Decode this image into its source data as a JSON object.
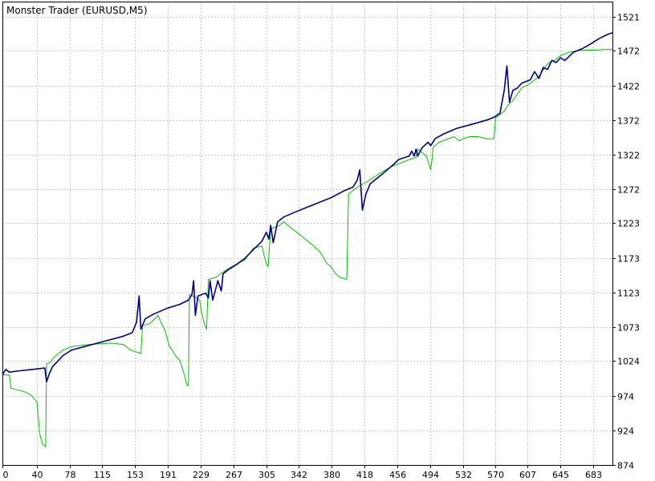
{
  "chart_data": {
    "type": "line",
    "title": "Monster Trader (EURUSD,M5)",
    "xlabel": "",
    "ylabel": "",
    "xlim": [
      0,
      705
    ],
    "ylim": [
      874,
      1543
    ],
    "x_ticks": [
      0,
      40,
      78,
      115,
      153,
      191,
      229,
      267,
      305,
      342,
      380,
      418,
      456,
      494,
      532,
      570,
      607,
      645,
      683
    ],
    "y_ticks": [
      874,
      924,
      974,
      1024,
      1073,
      1123,
      1173,
      1223,
      1272,
      1322,
      1372,
      1422,
      1472,
      1521
    ],
    "grid": true,
    "legend": "none",
    "series": [
      {
        "color": "#000080",
        "points": [
          [
            0,
            1004
          ],
          [
            4,
            1012
          ],
          [
            8,
            1008
          ],
          [
            20,
            1010
          ],
          [
            35,
            1012
          ],
          [
            49,
            1014
          ],
          [
            51,
            994
          ],
          [
            54,
            1005
          ],
          [
            58,
            1016
          ],
          [
            64,
            1024
          ],
          [
            70,
            1032
          ],
          [
            80,
            1040
          ],
          [
            95,
            1045
          ],
          [
            110,
            1050
          ],
          [
            125,
            1055
          ],
          [
            140,
            1060
          ],
          [
            150,
            1065
          ],
          [
            155,
            1080
          ],
          [
            158,
            1118
          ],
          [
            160,
            1070
          ],
          [
            165,
            1085
          ],
          [
            175,
            1092
          ],
          [
            190,
            1100
          ],
          [
            205,
            1106
          ],
          [
            215,
            1112
          ],
          [
            219,
            1120
          ],
          [
            221,
            1140
          ],
          [
            223,
            1090
          ],
          [
            226,
            1118
          ],
          [
            235,
            1122
          ],
          [
            238,
            1115
          ],
          [
            240,
            1140
          ],
          [
            243,
            1112
          ],
          [
            249,
            1140
          ],
          [
            253,
            1125
          ],
          [
            255,
            1150
          ],
          [
            260,
            1155
          ],
          [
            270,
            1163
          ],
          [
            280,
            1172
          ],
          [
            290,
            1185
          ],
          [
            300,
            1197
          ],
          [
            303,
            1205
          ],
          [
            305,
            1210
          ],
          [
            308,
            1200
          ],
          [
            310,
            1220
          ],
          [
            313,
            1195
          ],
          [
            318,
            1225
          ],
          [
            325,
            1232
          ],
          [
            340,
            1240
          ],
          [
            360,
            1250
          ],
          [
            380,
            1260
          ],
          [
            395,
            1270
          ],
          [
            405,
            1275
          ],
          [
            410,
            1285
          ],
          [
            413,
            1300
          ],
          [
            416,
            1242
          ],
          [
            420,
            1265
          ],
          [
            425,
            1280
          ],
          [
            440,
            1295
          ],
          [
            452,
            1308
          ],
          [
            458,
            1315
          ],
          [
            470,
            1320
          ],
          [
            473,
            1327
          ],
          [
            476,
            1320
          ],
          [
            478,
            1330
          ],
          [
            480,
            1320
          ],
          [
            485,
            1332
          ],
          [
            492,
            1340
          ],
          [
            495,
            1335
          ],
          [
            500,
            1345
          ],
          [
            510,
            1352
          ],
          [
            525,
            1360
          ],
          [
            540,
            1365
          ],
          [
            560,
            1372
          ],
          [
            568,
            1376
          ],
          [
            575,
            1382
          ],
          [
            580,
            1415
          ],
          [
            583,
            1450
          ],
          [
            586,
            1398
          ],
          [
            590,
            1415
          ],
          [
            595,
            1418
          ],
          [
            600,
            1425
          ],
          [
            610,
            1430
          ],
          [
            615,
            1442
          ],
          [
            620,
            1432
          ],
          [
            625,
            1448
          ],
          [
            630,
            1445
          ],
          [
            635,
            1458
          ],
          [
            640,
            1455
          ],
          [
            645,
            1462
          ],
          [
            650,
            1458
          ],
          [
            660,
            1470
          ],
          [
            670,
            1475
          ],
          [
            680,
            1482
          ],
          [
            690,
            1490
          ],
          [
            700,
            1496
          ],
          [
            705,
            1498
          ]
        ]
      },
      {
        "color": "#00c000",
        "points": [
          [
            0,
            1004
          ],
          [
            8,
            1004
          ],
          [
            10,
            985
          ],
          [
            15,
            983
          ],
          [
            25,
            980
          ],
          [
            33,
            975
          ],
          [
            40,
            965
          ],
          [
            43,
            920
          ],
          [
            46,
            905
          ],
          [
            50,
            900
          ],
          [
            51,
            1020
          ],
          [
            55,
            1022
          ],
          [
            60,
            1030
          ],
          [
            70,
            1040
          ],
          [
            80,
            1045
          ],
          [
            100,
            1048
          ],
          [
            125,
            1050
          ],
          [
            140,
            1048
          ],
          [
            148,
            1040
          ],
          [
            160,
            1035
          ],
          [
            162,
            1075
          ],
          [
            170,
            1078
          ],
          [
            175,
            1084
          ],
          [
            180,
            1090
          ],
          [
            185,
            1075
          ],
          [
            188,
            1068
          ],
          [
            193,
            1045
          ],
          [
            196,
            1040
          ],
          [
            200,
            1032
          ],
          [
            205,
            1025
          ],
          [
            210,
            1005
          ],
          [
            213,
            990
          ],
          [
            215,
            988
          ],
          [
            216,
            1120
          ],
          [
            225,
            1115
          ],
          [
            228,
            1112
          ],
          [
            230,
            1095
          ],
          [
            234,
            1075
          ],
          [
            236,
            1070
          ],
          [
            238,
            1142
          ],
          [
            247,
            1145
          ],
          [
            252,
            1150
          ],
          [
            262,
            1158
          ],
          [
            272,
            1165
          ],
          [
            280,
            1170
          ],
          [
            286,
            1180
          ],
          [
            290,
            1187
          ],
          [
            300,
            1190
          ],
          [
            302,
            1178
          ],
          [
            305,
            1165
          ],
          [
            307,
            1160
          ],
          [
            310,
            1215
          ],
          [
            320,
            1220
          ],
          [
            325,
            1225
          ],
          [
            335,
            1215
          ],
          [
            345,
            1205
          ],
          [
            355,
            1195
          ],
          [
            360,
            1190
          ],
          [
            368,
            1180
          ],
          [
            375,
            1165
          ],
          [
            380,
            1160
          ],
          [
            385,
            1150
          ],
          [
            390,
            1145
          ],
          [
            398,
            1142
          ],
          [
            400,
            1265
          ],
          [
            405,
            1270
          ],
          [
            410,
            1275
          ],
          [
            420,
            1282
          ],
          [
            430,
            1290
          ],
          [
            440,
            1298
          ],
          [
            450,
            1305
          ],
          [
            460,
            1310
          ],
          [
            470,
            1315
          ],
          [
            478,
            1318
          ],
          [
            480,
            1330
          ],
          [
            485,
            1325
          ],
          [
            490,
            1320
          ],
          [
            495,
            1300
          ],
          [
            498,
            1333
          ],
          [
            505,
            1340
          ],
          [
            515,
            1345
          ],
          [
            522,
            1348
          ],
          [
            525,
            1345
          ],
          [
            528,
            1342
          ],
          [
            532,
            1345
          ],
          [
            540,
            1348
          ],
          [
            550,
            1348
          ],
          [
            560,
            1345
          ],
          [
            568,
            1345
          ],
          [
            570,
            1375
          ],
          [
            575,
            1380
          ],
          [
            580,
            1385
          ],
          [
            585,
            1395
          ],
          [
            590,
            1400
          ],
          [
            600,
            1418
          ],
          [
            610,
            1425
          ],
          [
            620,
            1435
          ],
          [
            628,
            1450
          ],
          [
            632,
            1455
          ],
          [
            640,
            1460
          ],
          [
            645,
            1465
          ],
          [
            655,
            1470
          ],
          [
            665,
            1472
          ],
          [
            675,
            1473
          ],
          [
            685,
            1473
          ],
          [
            695,
            1474
          ],
          [
            705,
            1474
          ]
        ]
      }
    ]
  }
}
